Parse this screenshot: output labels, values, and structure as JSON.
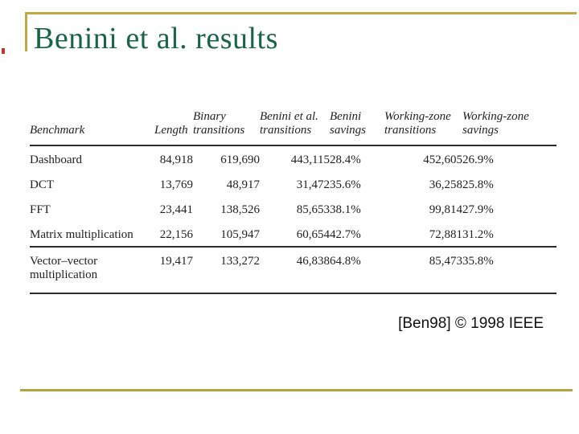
{
  "slide": {
    "title": "Benini et al. results",
    "citation": "[Ben98] © 1998 IEEE",
    "colors": {
      "title_green": "#1a6349",
      "gold_border": "#c0a844",
      "table_text": "#1f1f1f",
      "citation_text": "#111111",
      "background": "#ffffff"
    }
  },
  "table": {
    "columns": [
      "Benchmark",
      "Length",
      "Binary\ntransitions",
      "Benini et al.\ntransitions",
      "Benini\nsavings",
      "Working-zone\ntransitions",
      "Working-zone\nsavings"
    ],
    "rows": [
      [
        "Dashboard",
        "84,918",
        "619,690",
        "443,115",
        "28.4%",
        "452,605",
        "26.9%"
      ],
      [
        "DCT",
        "13,769",
        "48,917",
        "31,472",
        "35.6%",
        "36,258",
        "25.8%"
      ],
      [
        "FFT",
        "23,441",
        "138,526",
        "85,653",
        "38.1%",
        "99,814",
        "27.9%"
      ],
      [
        "Matrix multiplication",
        "22,156",
        "105,947",
        "60,654",
        "42.7%",
        "72,881",
        "31.2%"
      ],
      [
        "Vector–vector multiplication",
        "19,417",
        "133,272",
        "46,838",
        "64.8%",
        "85,473",
        "35.8%"
      ]
    ]
  }
}
